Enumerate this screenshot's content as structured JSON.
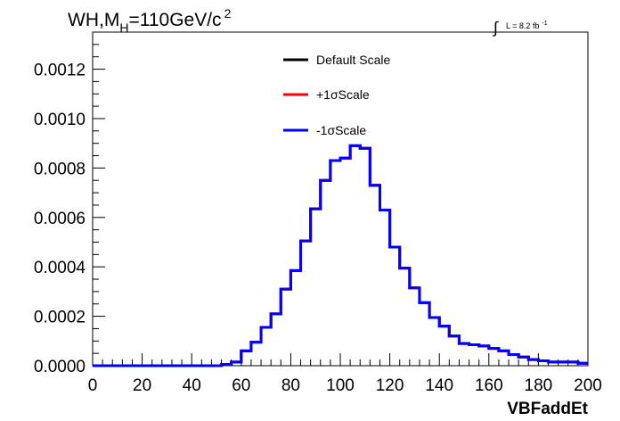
{
  "chart_data": {
    "type": "histogram",
    "title": "WH,M_H=110GeV/c^2",
    "title_parts": {
      "main": "WH,M",
      "sub": "H",
      "rest": "=110GeV/c",
      "sup": "2"
    },
    "luminosity": {
      "symbol": "∫",
      "text": "L = 8.2 fb",
      "sup": "-1"
    },
    "xlabel": "VBFaddEt",
    "ylabel": "",
    "xlim": [
      0,
      200
    ],
    "ylim": [
      0,
      0.00135
    ],
    "xticks": [
      0,
      20,
      40,
      60,
      80,
      100,
      120,
      140,
      160,
      180,
      200
    ],
    "xtick_labels": [
      "0",
      "20",
      "40",
      "60",
      "80",
      "100",
      "120",
      "140",
      "160",
      "180",
      "200"
    ],
    "yticks": [
      0.0,
      0.0002,
      0.0004,
      0.0006,
      0.0008,
      0.001,
      0.0012
    ],
    "ytick_labels": [
      "0.0000",
      "0.0002",
      "0.0004",
      "0.0006",
      "0.0008",
      "0.0010",
      "0.0012"
    ],
    "bin_width": 4,
    "bin_edges_start": 0,
    "legend": {
      "placement": "top-center"
    },
    "series": [
      {
        "name": "Default Scale",
        "color": "#000000",
        "values": [
          0,
          0,
          0,
          0,
          0,
          0,
          0,
          0,
          0,
          0,
          0,
          0,
          0,
          5e-06,
          1.5e-05,
          6e-05,
          9.5e-05,
          0.000155,
          0.00021,
          0.00031,
          0.000385,
          0.000505,
          0.000635,
          0.00075,
          0.00083,
          0.00084,
          0.00089,
          0.00088,
          0.00073,
          0.00063,
          0.00048,
          0.000395,
          0.000315,
          0.000255,
          0.000195,
          0.00016,
          0.00012,
          9e-05,
          8.5e-05,
          8e-05,
          7e-05,
          6e-05,
          4.5e-05,
          3.5e-05,
          2.5e-05,
          2e-05,
          1.5e-05,
          1.5e-05,
          1.5e-05,
          1e-05
        ]
      },
      {
        "name": "+1σScale",
        "color": "#ff0000",
        "values": [
          0,
          0,
          0,
          0,
          0,
          0,
          0,
          0,
          0,
          0,
          0,
          0,
          0,
          5e-06,
          1.5e-05,
          6e-05,
          9.5e-05,
          0.000155,
          0.00021,
          0.00031,
          0.000385,
          0.000505,
          0.000635,
          0.00075,
          0.00083,
          0.00084,
          0.00089,
          0.00088,
          0.00073,
          0.00063,
          0.00048,
          0.000395,
          0.000315,
          0.000255,
          0.000195,
          0.00016,
          0.00012,
          9e-05,
          8.5e-05,
          8e-05,
          7e-05,
          6e-05,
          4.5e-05,
          3.5e-05,
          2.5e-05,
          2e-05,
          1.5e-05,
          1.5e-05,
          1.5e-05,
          1e-05
        ]
      },
      {
        "name": "-1σScale",
        "color": "#0000ff",
        "values": [
          0,
          0,
          0,
          0,
          0,
          0,
          0,
          0,
          0,
          0,
          0,
          0,
          0,
          5e-06,
          1.5e-05,
          6e-05,
          9.5e-05,
          0.000155,
          0.00021,
          0.00031,
          0.000385,
          0.000505,
          0.000635,
          0.00075,
          0.00083,
          0.00084,
          0.00089,
          0.00088,
          0.00073,
          0.00063,
          0.00048,
          0.000395,
          0.000315,
          0.000255,
          0.000195,
          0.00016,
          0.00012,
          9e-05,
          8.5e-05,
          8e-05,
          7e-05,
          6e-05,
          4.5e-05,
          3.5e-05,
          2.5e-05,
          2e-05,
          1.5e-05,
          1.5e-05,
          1.5e-05,
          1e-05
        ]
      }
    ]
  }
}
